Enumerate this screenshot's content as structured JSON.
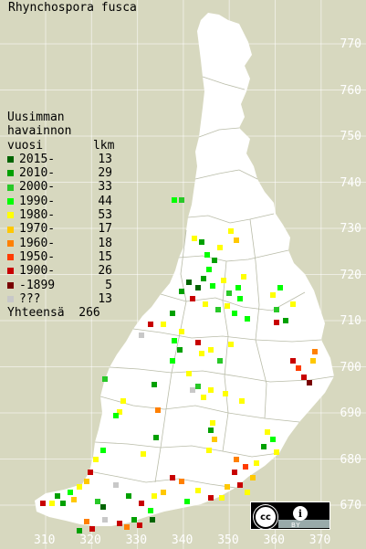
{
  "title": "Rhynchospora fusca",
  "legend": {
    "heading1": "Uusimman",
    "heading2": "havainnon",
    "col_year": "vuosi",
    "col_count": "lkm",
    "rows": [
      {
        "label": "2015-",
        "count": "13",
        "color": "#006400"
      },
      {
        "label": "2010-",
        "count": "29",
        "color": "#00a000"
      },
      {
        "label": "2000-",
        "count": "33",
        "color": "#28c828"
      },
      {
        "label": "1990-",
        "count": "44",
        "color": "#00ff00"
      },
      {
        "label": "1980-",
        "count": "53",
        "color": "#ffff00"
      },
      {
        "label": "1970-",
        "count": "17",
        "color": "#ffc800"
      },
      {
        "label": "1960-",
        "count": "18",
        "color": "#ff8000"
      },
      {
        "label": "1950-",
        "count": "15",
        "color": "#ff3c00"
      },
      {
        "label": "1900-",
        "count": "26",
        "color": "#c80000"
      },
      {
        "label": "-1899",
        "count": "5",
        "color": "#780000"
      },
      {
        "label": "???",
        "count": "13",
        "color": "#c8c8c8"
      }
    ],
    "total_label": "Yhteensä",
    "total_value": "266"
  },
  "axis_right": [
    "770",
    "760",
    "750",
    "740",
    "730",
    "720",
    "710",
    "700",
    "690",
    "680",
    "670"
  ],
  "axis_bottom": [
    "310",
    "320",
    "330",
    "340",
    "350",
    "360",
    "370"
  ],
  "license": {
    "cc": "cc",
    "by": "BY"
  }
}
